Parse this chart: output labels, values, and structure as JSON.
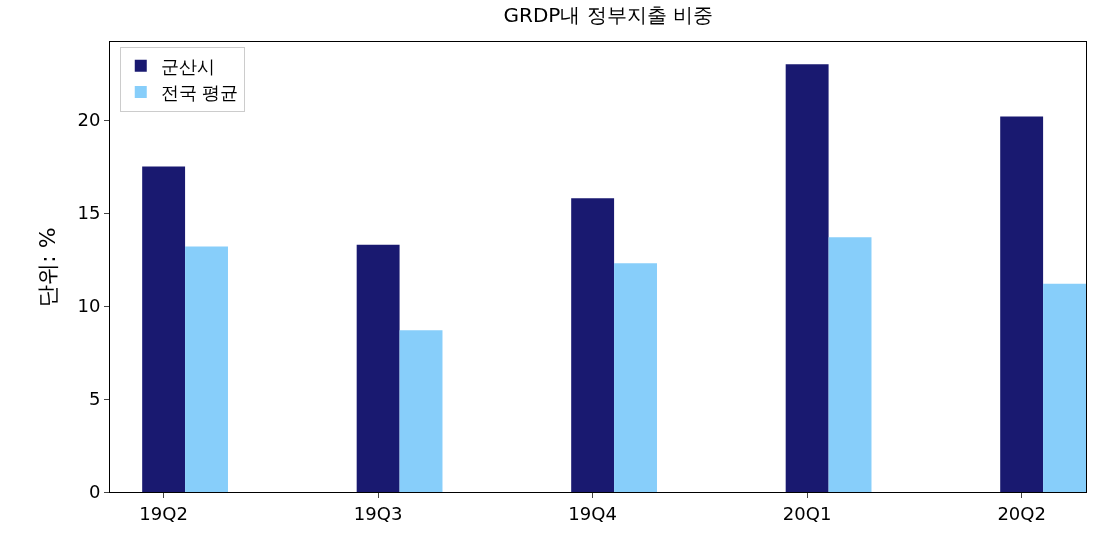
{
  "chart_data": {
    "type": "bar",
    "title": "GRDP내 정부지출 비중",
    "ylabel": "단위: %",
    "categories": [
      "19Q2",
      "19Q3",
      "19Q4",
      "20Q1",
      "20Q2"
    ],
    "series": [
      {
        "name": "군산시",
        "color": "#191970",
        "values": [
          17.5,
          13.3,
          15.8,
          23.0,
          20.2
        ]
      },
      {
        "name": "전국 평균",
        "color": "#87cefa",
        "values": [
          13.2,
          8.7,
          12.3,
          13.7,
          11.2
        ]
      }
    ],
    "ylim": [
      0,
      24.2
    ],
    "yticks": [
      0,
      5,
      10,
      15,
      20
    ],
    "grid": false,
    "legend": "top left"
  }
}
